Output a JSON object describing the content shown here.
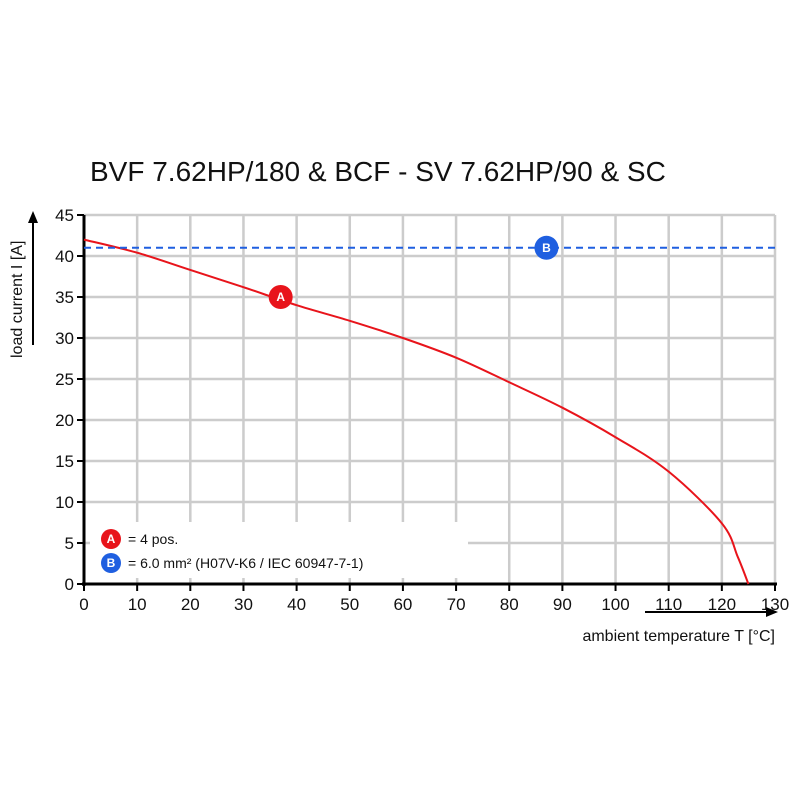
{
  "chart_data": {
    "type": "line",
    "title": "BVF 7.62HP/180 & BCF - SV 7.62HP/90 & SC",
    "xlabel": "ambient temperature T [°C]",
    "ylabel": "load current I [A]",
    "xlim": [
      0,
      130
    ],
    "ylim": [
      0,
      45
    ],
    "xticks": [
      0,
      10,
      20,
      30,
      40,
      50,
      60,
      70,
      80,
      90,
      100,
      110,
      120,
      130
    ],
    "yticks": [
      0,
      5,
      10,
      15,
      20,
      25,
      30,
      35,
      40,
      45
    ],
    "grid": true,
    "series": [
      {
        "marker": "A",
        "color": "#e8141b",
        "style": "solid",
        "x": [
          0,
          10,
          20,
          30,
          40,
          50,
          60,
          70,
          80,
          90,
          100,
          110,
          120,
          123,
          125
        ],
        "y": [
          42,
          40.4,
          38.3,
          36.2,
          34.0,
          32.1,
          30.0,
          27.6,
          24.6,
          21.5,
          17.9,
          13.7,
          7.4,
          3.3,
          0
        ]
      },
      {
        "marker": "B",
        "color": "#1f5fe0",
        "style": "dashed",
        "x": [
          0,
          130
        ],
        "y": [
          41,
          41
        ]
      }
    ],
    "markers": [
      {
        "label": "A",
        "x": 37,
        "y": 35,
        "color": "#e8141b"
      },
      {
        "label": "B",
        "x": 87,
        "y": 41,
        "color": "#1f5fe0"
      }
    ],
    "legend": {
      "placement": "bottom-left",
      "entries": [
        {
          "marker": "A",
          "text": "= 4 pos."
        },
        {
          "marker": "B",
          "text": "= 6.0 mm² (H07V-K6 / IEC 60947-7-1)"
        }
      ]
    }
  }
}
